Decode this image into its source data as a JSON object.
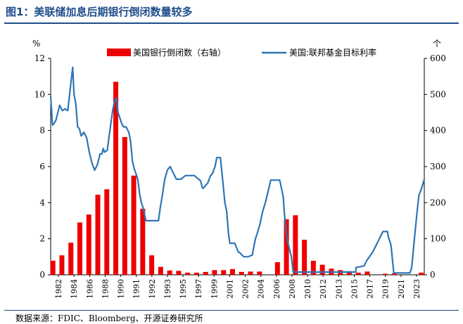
{
  "header": {
    "title": "图1：美联储加息后期银行倒闭数量较多"
  },
  "footer": {
    "source": "数据来源：FDIC、Bloomberg、开源证券研究所"
  },
  "colors": {
    "bar": "#ee0000",
    "line": "#2e75b6",
    "title": "#1f4e8c"
  },
  "chart_data": {
    "type": "bar+line",
    "left_axis_unit": "%",
    "right_axis_unit": "个",
    "y_left_lim": [
      0,
      12
    ],
    "y_left_ticks": [
      0,
      2,
      4,
      6,
      8,
      10,
      12
    ],
    "y_right_lim": [
      0,
      600
    ],
    "y_right_ticks": [
      0,
      100,
      200,
      300,
      400,
      500,
      600
    ],
    "x_lim": [
      1982,
      2023.6
    ],
    "x_tick_labels": [
      "1982",
      "1984",
      "1986",
      "1988",
      "1990",
      "1991",
      "1992",
      "1993",
      "1995",
      "1997",
      "1999",
      "2001",
      "2002",
      "2004",
      "2006",
      "2008",
      "2010",
      "2012",
      "2013",
      "2015",
      "2017",
      "2019",
      "2021",
      "2023"
    ],
    "legend": {
      "placement": "top",
      "bar_label": "美国银行倒闭数（右轴）",
      "line_label": "美国:联邦基金目标利率"
    },
    "bank_failures": {
      "name": "美国银行倒闭数（右轴）",
      "axis": "right",
      "years": [
        1982,
        1983,
        1984,
        1985,
        1986,
        1987,
        1988,
        1989,
        1990,
        1991,
        1992,
        1993,
        1994,
        1995,
        1996,
        1997,
        1998,
        1999,
        2000,
        2001,
        2002,
        2003,
        2004,
        2005,
        2006,
        2007,
        2008,
        2009,
        2010,
        2011,
        2012,
        2013,
        2014,
        2015,
        2016,
        2017,
        2018,
        2019,
        2020,
        2021,
        2022,
        2023
      ],
      "values": [
        39,
        54,
        89,
        145,
        167,
        222,
        237,
        535,
        382,
        275,
        183,
        54,
        22,
        12,
        11,
        6,
        6,
        8,
        13,
        13,
        16,
        8,
        9,
        9,
        0,
        35,
        154,
        165,
        97,
        39,
        28,
        17,
        13,
        10,
        6,
        9,
        0,
        3,
        4,
        0,
        0,
        6
      ]
    },
    "fed_funds_target_rate": {
      "name": "美国:联邦基金目标利率",
      "axis": "left",
      "x": [
        1982.0,
        1982.2,
        1982.4,
        1982.6,
        1982.8,
        1983.0,
        1983.3,
        1983.6,
        1983.9,
        1984.2,
        1984.45,
        1984.6,
        1984.8,
        1985.0,
        1985.2,
        1985.4,
        1985.7,
        1986.0,
        1986.3,
        1986.6,
        1986.9,
        1987.2,
        1987.5,
        1987.7,
        1987.85,
        1988.0,
        1988.3,
        1988.6,
        1988.9,
        1989.1,
        1989.3,
        1989.5,
        1989.7,
        1989.9,
        1990.1,
        1990.4,
        1990.7,
        1990.9,
        1991.1,
        1991.3,
        1991.5,
        1991.7,
        1991.9,
        1992.1,
        1992.3,
        1992.6,
        1993.0,
        1993.5,
        1994.0,
        1994.2,
        1994.4,
        1994.7,
        1995.0,
        1995.3,
        1995.6,
        1996.0,
        1996.5,
        1997.0,
        1997.3,
        1997.7,
        1998.0,
        1998.7,
        1998.9,
        1999.0,
        1999.5,
        1999.8,
        2000.0,
        2000.3,
        2000.5,
        2000.9,
        2001.0,
        2001.2,
        2001.4,
        2001.6,
        2001.8,
        2001.95,
        2002.5,
        2002.9,
        2003.0,
        2003.5,
        2004.0,
        2004.45,
        2004.6,
        2004.8,
        2005.0,
        2005.3,
        2005.6,
        2005.9,
        2006.2,
        2006.5,
        2007.0,
        2007.5,
        2007.7,
        2007.9,
        2008.0,
        2008.1,
        2008.3,
        2008.8,
        2009.0,
        2010.0,
        2012.0,
        2014.0,
        2015.95,
        2016.0,
        2016.9,
        2017.2,
        2017.5,
        2017.9,
        2018.2,
        2018.5,
        2018.8,
        2019.0,
        2019.5,
        2019.6,
        2019.8,
        2019.9,
        2020.2,
        2021.0,
        2022.0,
        2022.2,
        2022.4,
        2022.6,
        2022.8,
        2023.0,
        2023.3,
        2023.6
      ],
      "y": [
        9.9,
        8.3,
        8.4,
        8.6,
        9.0,
        9.4,
        9.1,
        9.2,
        9.1,
        10.4,
        11.5,
        10.0,
        9.5,
        8.2,
        8.1,
        7.7,
        7.9,
        7.6,
        6.8,
        6.2,
        5.8,
        6.1,
        6.7,
        6.7,
        7.0,
        6.8,
        6.9,
        8.0,
        9.1,
        9.6,
        9.8,
        9.0,
        8.7,
        8.4,
        8.2,
        8.2,
        7.9,
        7.4,
        6.3,
        5.9,
        5.6,
        5.3,
        4.5,
        4.0,
        3.7,
        3.0,
        3.0,
        3.0,
        3.0,
        3.7,
        4.3,
        5.3,
        5.8,
        6.0,
        5.7,
        5.3,
        5.3,
        5.5,
        5.5,
        5.5,
        5.5,
        5.2,
        4.8,
        4.8,
        5.1,
        5.5,
        5.6,
        6.0,
        6.5,
        6.5,
        6.0,
        5.0,
        4.0,
        3.5,
        2.3,
        1.75,
        1.75,
        1.25,
        1.25,
        1.0,
        1.0,
        1.1,
        1.5,
        2.0,
        2.3,
        2.8,
        3.5,
        4.0,
        4.6,
        5.25,
        5.25,
        5.25,
        4.8,
        4.3,
        3.5,
        3.0,
        2.0,
        1.0,
        0.15,
        0.15,
        0.15,
        0.15,
        0.15,
        0.4,
        0.5,
        0.8,
        1.0,
        1.3,
        1.6,
        1.9,
        2.2,
        2.4,
        2.4,
        2.1,
        1.8,
        1.6,
        0.1,
        0.1,
        0.1,
        0.4,
        1.5,
        2.5,
        3.5,
        4.4,
        4.8,
        5.3
      ]
    }
  }
}
